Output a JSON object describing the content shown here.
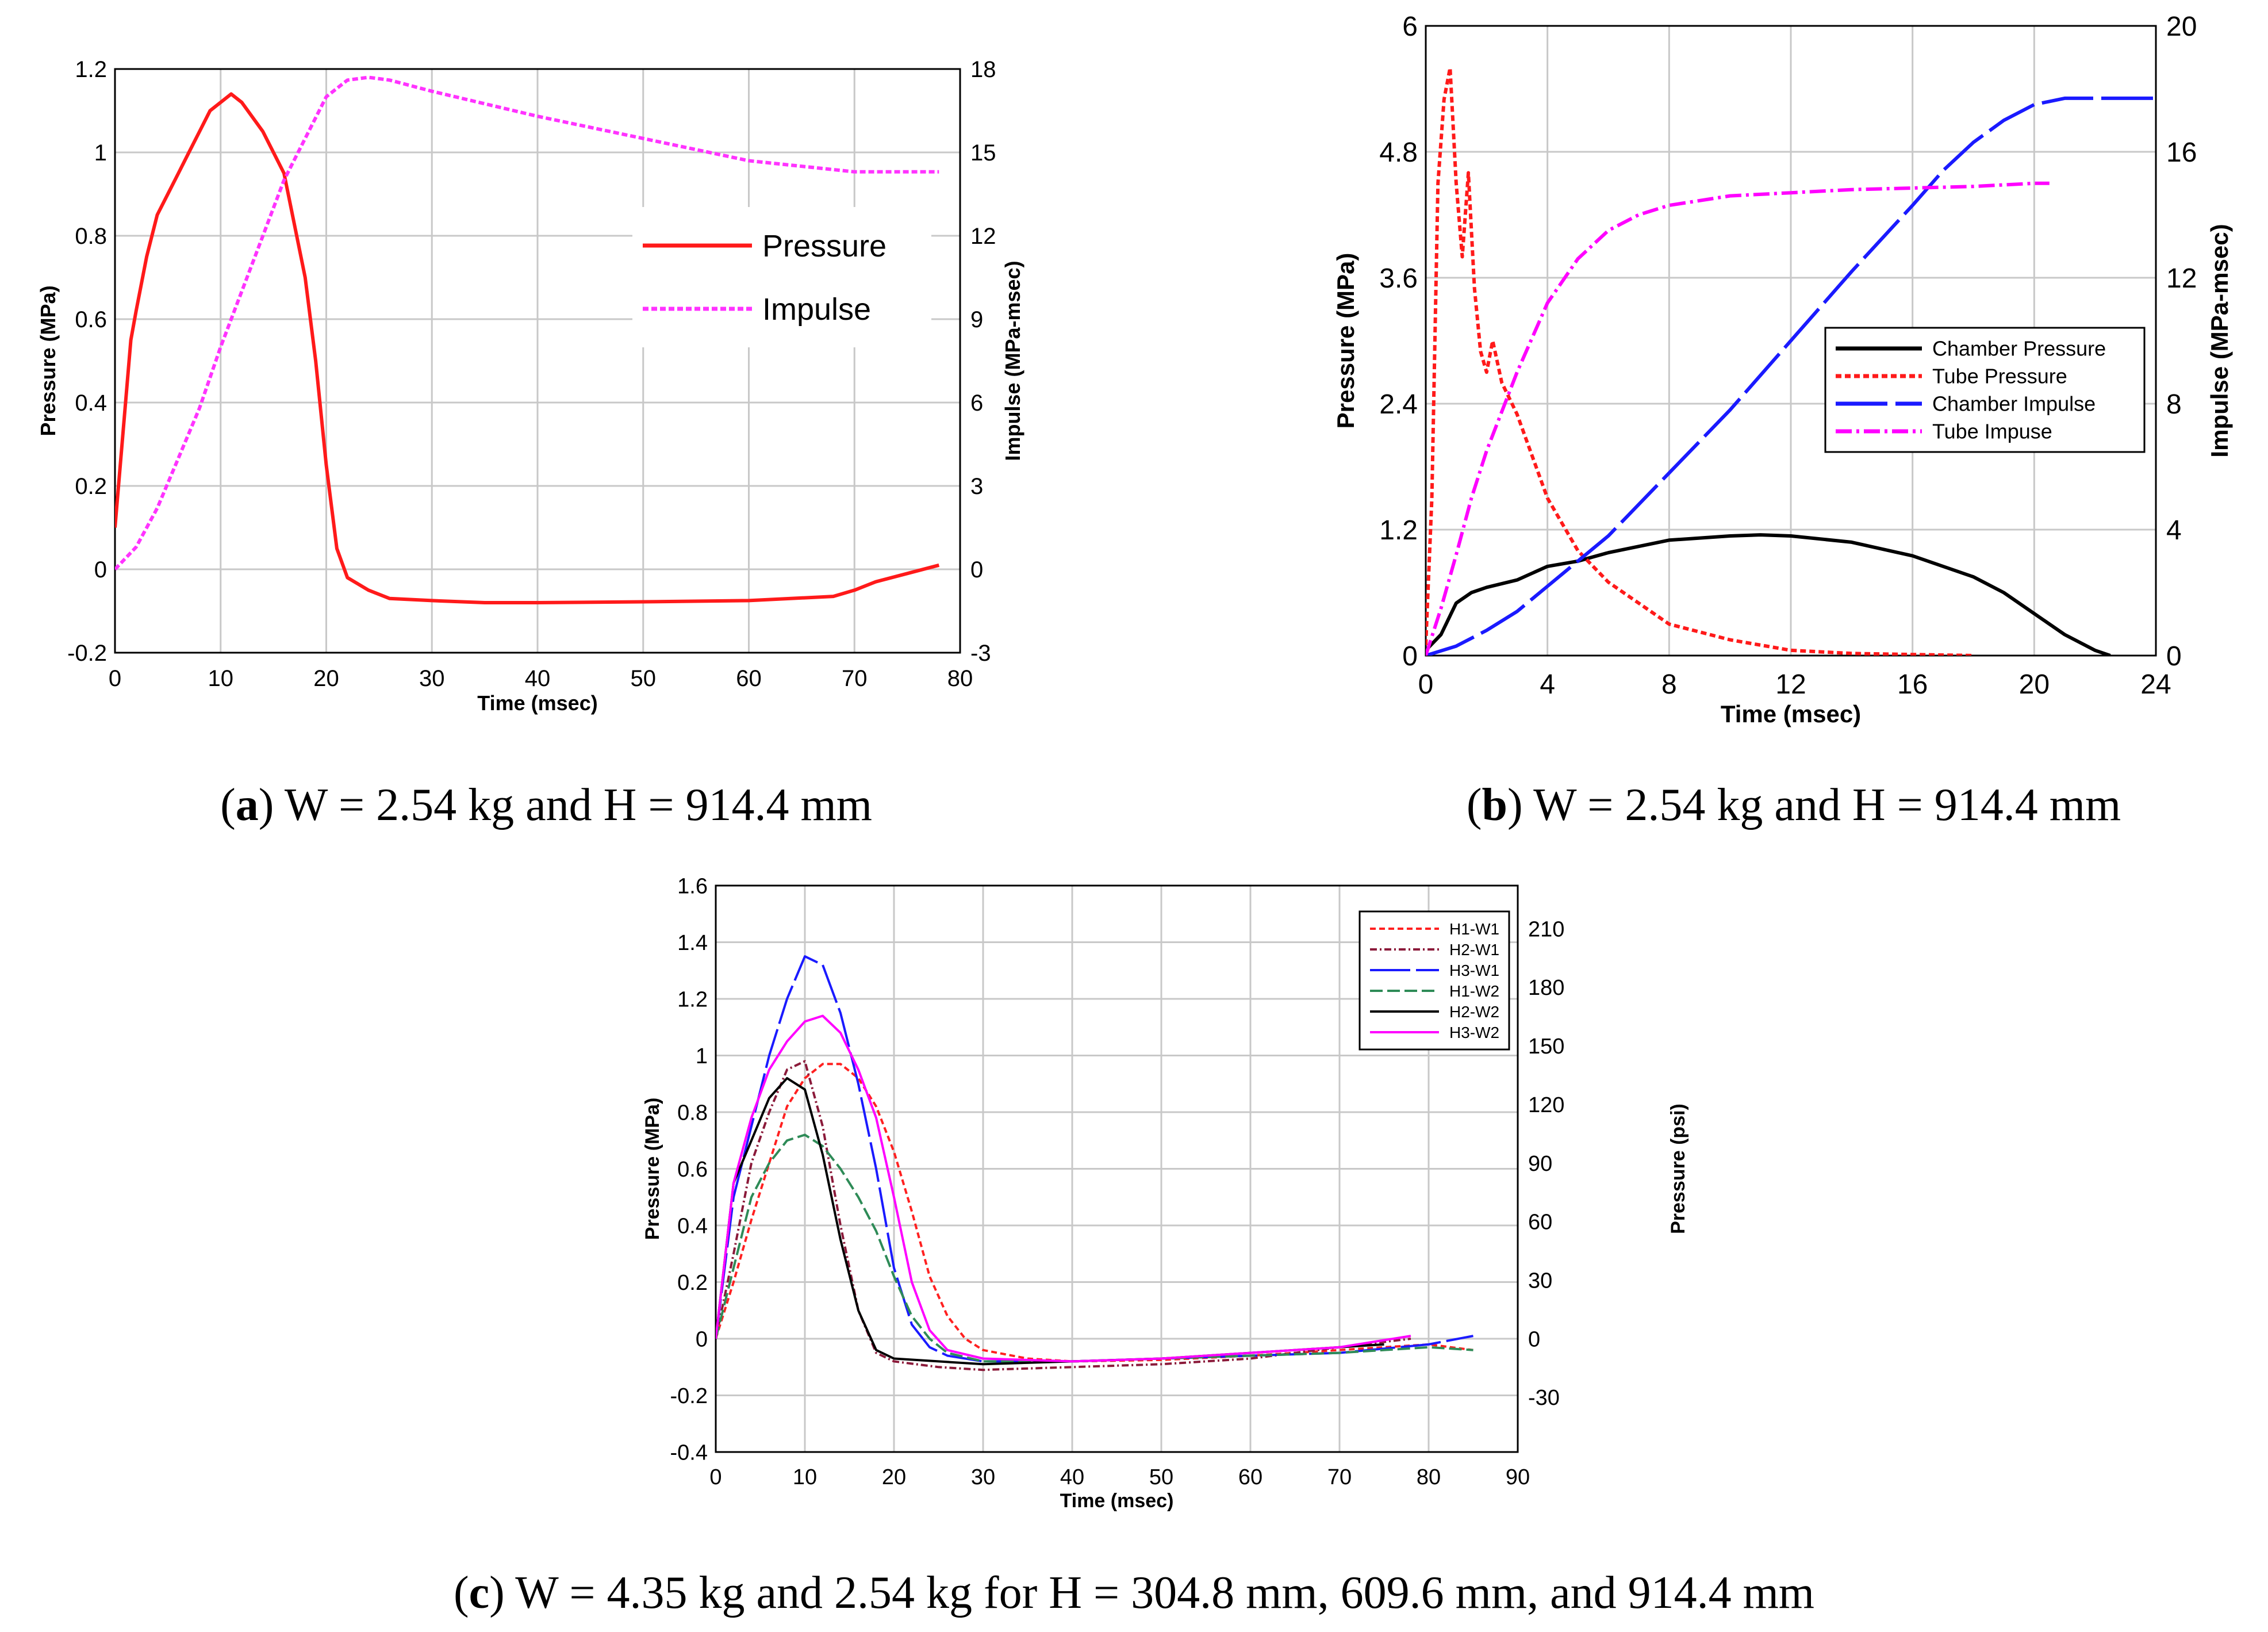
{
  "chart_data": [
    {
      "id": "a",
      "type": "line",
      "caption_letter": "a",
      "caption_text": ") W = 2.54 kg and H = 914.4 mm",
      "xlabel": "Time (msec)",
      "ylabel": "Pressure (MPa)",
      "y2label": "Impulse (MPa-msec)",
      "xlim": [
        0,
        80
      ],
      "ylim": [
        -0.2,
        1.2
      ],
      "y2lim": [
        -3,
        18
      ],
      "xticks": [
        "0",
        "10",
        "20",
        "30",
        "40",
        "50",
        "60",
        "70",
        "80"
      ],
      "yticks": [
        "-0.2",
        "0",
        "0.2",
        "0.4",
        "0.6",
        "0.8",
        "1",
        "1.2"
      ],
      "y2ticks": [
        "-3",
        "0",
        "3",
        "6",
        "9",
        "12",
        "15",
        "18"
      ],
      "legend": [
        "Pressure",
        "Impulse"
      ],
      "series": [
        {
          "name": "Pressure",
          "axis": "y",
          "color": "#ff1a1a",
          "dash": "",
          "x": [
            0,
            0.5,
            1,
            1.5,
            2,
            3,
            4,
            5,
            6,
            7,
            8,
            9,
            10,
            11,
            12,
            14,
            16,
            18,
            19,
            20,
            21,
            22,
            24,
            26,
            30,
            35,
            40,
            50,
            60,
            68,
            70,
            72,
            75,
            78
          ],
          "y": [
            0.1,
            0.25,
            0.4,
            0.55,
            0.62,
            0.75,
            0.85,
            0.9,
            0.95,
            1.0,
            1.05,
            1.1,
            1.12,
            1.14,
            1.12,
            1.05,
            0.95,
            0.7,
            0.5,
            0.25,
            0.05,
            -0.02,
            -0.05,
            -0.07,
            -0.075,
            -0.08,
            -0.08,
            -0.078,
            -0.075,
            -0.065,
            -0.05,
            -0.03,
            -0.01,
            0.01
          ]
        },
        {
          "name": "Impulse",
          "axis": "y2",
          "color": "#ff33ff",
          "dash": "10,5",
          "x": [
            0,
            2,
            4,
            6,
            8,
            10,
            12,
            14,
            16,
            18,
            20,
            22,
            24,
            26,
            30,
            40,
            50,
            60,
            70,
            75,
            78
          ],
          "y": [
            0,
            0.8,
            2.2,
            4,
            5.8,
            8,
            10,
            12,
            14,
            15.5,
            17,
            17.6,
            17.7,
            17.6,
            17.2,
            16.3,
            15.5,
            14.7,
            14.3,
            14.3,
            14.3
          ]
        }
      ]
    },
    {
      "id": "b",
      "type": "line",
      "caption_letter": "b",
      "caption_text": ") W = 2.54 kg and H = 914.4 mm",
      "xlabel": "Time (msec)",
      "ylabel": "Pressure (MPa)",
      "y2label": "Impulse (MPa-msec)",
      "xlim": [
        0,
        24
      ],
      "ylim": [
        0,
        6
      ],
      "y2lim": [
        0,
        20
      ],
      "xticks": [
        "0",
        "4",
        "8",
        "12",
        "16",
        "20",
        "24"
      ],
      "yticks": [
        "0",
        "1.2",
        "2.4",
        "3.6",
        "4.8",
        "6"
      ],
      "y2ticks": [
        "0",
        "4",
        "8",
        "12",
        "16",
        "20"
      ],
      "legend": [
        "Chamber Pressure",
        "Tube Pressure",
        "Chamber Impulse",
        "Tube Impuse"
      ],
      "series": [
        {
          "name": "Chamber Pressure",
          "axis": "y",
          "color": "#000000",
          "dash": "",
          "x": [
            0,
            0.5,
            1,
            1.5,
            2,
            3,
            4,
            5,
            6,
            8,
            10,
            11,
            12,
            14,
            16,
            18,
            19,
            20,
            21,
            22,
            22.5
          ],
          "y": [
            0.05,
            0.2,
            0.5,
            0.6,
            0.65,
            0.72,
            0.85,
            0.9,
            0.98,
            1.1,
            1.14,
            1.15,
            1.14,
            1.08,
            0.95,
            0.75,
            0.6,
            0.4,
            0.2,
            0.05,
            0.0
          ]
        },
        {
          "name": "Tube Pressure",
          "axis": "y",
          "color": "#ff1a1a",
          "dash": "10,6",
          "x": [
            0,
            0.2,
            0.4,
            0.6,
            0.8,
            1.0,
            1.2,
            1.4,
            1.6,
            1.8,
            2.0,
            2.2,
            2.5,
            3,
            3.5,
            4,
            5,
            6,
            7,
            8,
            10,
            12,
            14,
            16,
            18
          ],
          "y": [
            0.1,
            1.5,
            4.5,
            5.3,
            5.6,
            4.5,
            3.8,
            4.6,
            3.5,
            2.9,
            2.7,
            3.0,
            2.6,
            2.3,
            1.9,
            1.5,
            1.0,
            0.7,
            0.5,
            0.3,
            0.15,
            0.05,
            0.02,
            0.01,
            0.0
          ]
        },
        {
          "name": "Chamber Impulse",
          "axis": "y2",
          "color": "#1a1aff",
          "dash": "90,14",
          "x": [
            0,
            1,
            2,
            3,
            4,
            6,
            8,
            10,
            12,
            14,
            16,
            17,
            18,
            19,
            20,
            20.5,
            21,
            22,
            23,
            24
          ],
          "y": [
            0,
            0.3,
            0.8,
            1.4,
            2.2,
            3.8,
            5.8,
            7.8,
            10,
            12.2,
            14.3,
            15.4,
            16.3,
            17,
            17.5,
            17.6,
            17.7,
            17.7,
            17.7,
            17.7
          ]
        },
        {
          "name": "Tube Impuse",
          "axis": "y2",
          "color": "#ff00ff",
          "dash": "28,8,5,8",
          "x": [
            0,
            0.5,
            1,
            1.5,
            2,
            3,
            4,
            5,
            6,
            7,
            8,
            10,
            12,
            14,
            16,
            18,
            20,
            20.5
          ],
          "y": [
            0,
            1.5,
            3.2,
            5,
            6.5,
            9,
            11.2,
            12.6,
            13.5,
            14,
            14.3,
            14.6,
            14.7,
            14.8,
            14.85,
            14.9,
            15,
            15
          ]
        }
      ]
    },
    {
      "id": "c",
      "type": "line",
      "caption_letter": "c",
      "caption_text": ") W = 4.35 kg and 2.54 kg for H = 304.8 mm, 609.6 mm, and 914.4 mm",
      "xlabel": "Time (msec)",
      "ylabel": "Pressure (MPa)",
      "y2label": "Pressure (psi)",
      "xlim": [
        0,
        90
      ],
      "ylim": [
        -0.4,
        1.6
      ],
      "y2lim": [
        -58.0,
        232.1
      ],
      "xticks": [
        "0",
        "10",
        "20",
        "30",
        "40",
        "50",
        "60",
        "70",
        "80",
        "90"
      ],
      "yticks": [
        "-0.4",
        "-0.2",
        "0",
        "0.2",
        "0.4",
        "0.6",
        "0.8",
        "1",
        "1.2",
        "1.4",
        "1.6"
      ],
      "y2ticks": [
        "-30",
        "0",
        "30",
        "60",
        "90",
        "120",
        "150",
        "180",
        "210"
      ],
      "legend": [
        "H1-W1",
        "H2-W1",
        "H3-W1",
        "H1-W2",
        "H2-W2",
        "H3-W2"
      ],
      "series": [
        {
          "name": "H1-W1",
          "axis": "y",
          "color": "#ff2020",
          "dash": "10,6",
          "x": [
            0,
            2,
            4,
            6,
            8,
            10,
            12,
            14,
            16,
            18,
            20,
            22,
            24,
            26,
            28,
            30,
            35,
            40,
            50,
            60,
            70,
            75,
            80,
            85
          ],
          "y": [
            0,
            0.2,
            0.42,
            0.62,
            0.82,
            0.92,
            0.97,
            0.97,
            0.92,
            0.82,
            0.66,
            0.45,
            0.22,
            0.08,
            0.0,
            -0.04,
            -0.07,
            -0.08,
            -0.075,
            -0.06,
            -0.04,
            -0.03,
            -0.02,
            -0.04
          ]
        },
        {
          "name": "H2-W1",
          "axis": "y",
          "color": "#8b1a3a",
          "dash": "12,5,3,5",
          "x": [
            0,
            2,
            4,
            6,
            8,
            10,
            12,
            14,
            16,
            18,
            20,
            25,
            30,
            40,
            50,
            60,
            70,
            78
          ],
          "y": [
            0,
            0.3,
            0.62,
            0.8,
            0.95,
            0.98,
            0.75,
            0.4,
            0.1,
            -0.05,
            -0.08,
            -0.1,
            -0.11,
            -0.1,
            -0.09,
            -0.07,
            -0.03,
            0.0
          ]
        },
        {
          "name": "H3-W1",
          "axis": "y",
          "color": "#1a1aff",
          "dash": "70,10",
          "x": [
            0,
            2,
            4,
            6,
            8,
            10,
            12,
            14,
            16,
            18,
            20,
            22,
            24,
            26,
            30,
            40,
            50,
            60,
            70,
            80,
            85
          ],
          "y": [
            0,
            0.5,
            0.75,
            1.0,
            1.2,
            1.35,
            1.32,
            1.15,
            0.9,
            0.6,
            0.25,
            0.05,
            -0.03,
            -0.06,
            -0.08,
            -0.08,
            -0.07,
            -0.06,
            -0.05,
            -0.02,
            0.01
          ]
        },
        {
          "name": "H1-W2",
          "axis": "y",
          "color": "#2e8b57",
          "dash": "22,8",
          "x": [
            0,
            2,
            4,
            6,
            8,
            10,
            12,
            14,
            16,
            18,
            20,
            22,
            24,
            26,
            30,
            40,
            50,
            60,
            70,
            80,
            85
          ],
          "y": [
            0,
            0.25,
            0.5,
            0.62,
            0.7,
            0.72,
            0.68,
            0.6,
            0.5,
            0.38,
            0.22,
            0.08,
            0.0,
            -0.05,
            -0.08,
            -0.08,
            -0.07,
            -0.06,
            -0.05,
            -0.03,
            -0.04
          ]
        },
        {
          "name": "H2-W2",
          "axis": "y",
          "color": "#000000",
          "dash": "",
          "x": [
            0,
            2,
            4,
            6,
            8,
            10,
            12,
            14,
            16,
            18,
            20,
            25,
            30,
            40,
            50,
            60,
            70,
            75
          ],
          "y": [
            0,
            0.55,
            0.7,
            0.85,
            0.92,
            0.88,
            0.65,
            0.35,
            0.1,
            -0.04,
            -0.07,
            -0.08,
            -0.09,
            -0.08,
            -0.07,
            -0.05,
            -0.03,
            -0.02
          ]
        },
        {
          "name": "H3-W2",
          "axis": "y",
          "color": "#ff00ff",
          "dash": "",
          "x": [
            0,
            2,
            4,
            6,
            8,
            10,
            12,
            14,
            16,
            18,
            20,
            22,
            24,
            26,
            30,
            40,
            50,
            60,
            70,
            78
          ],
          "y": [
            0,
            0.55,
            0.78,
            0.95,
            1.05,
            1.12,
            1.14,
            1.08,
            0.95,
            0.78,
            0.5,
            0.2,
            0.03,
            -0.04,
            -0.07,
            -0.08,
            -0.07,
            -0.05,
            -0.03,
            0.01
          ]
        }
      ]
    }
  ]
}
